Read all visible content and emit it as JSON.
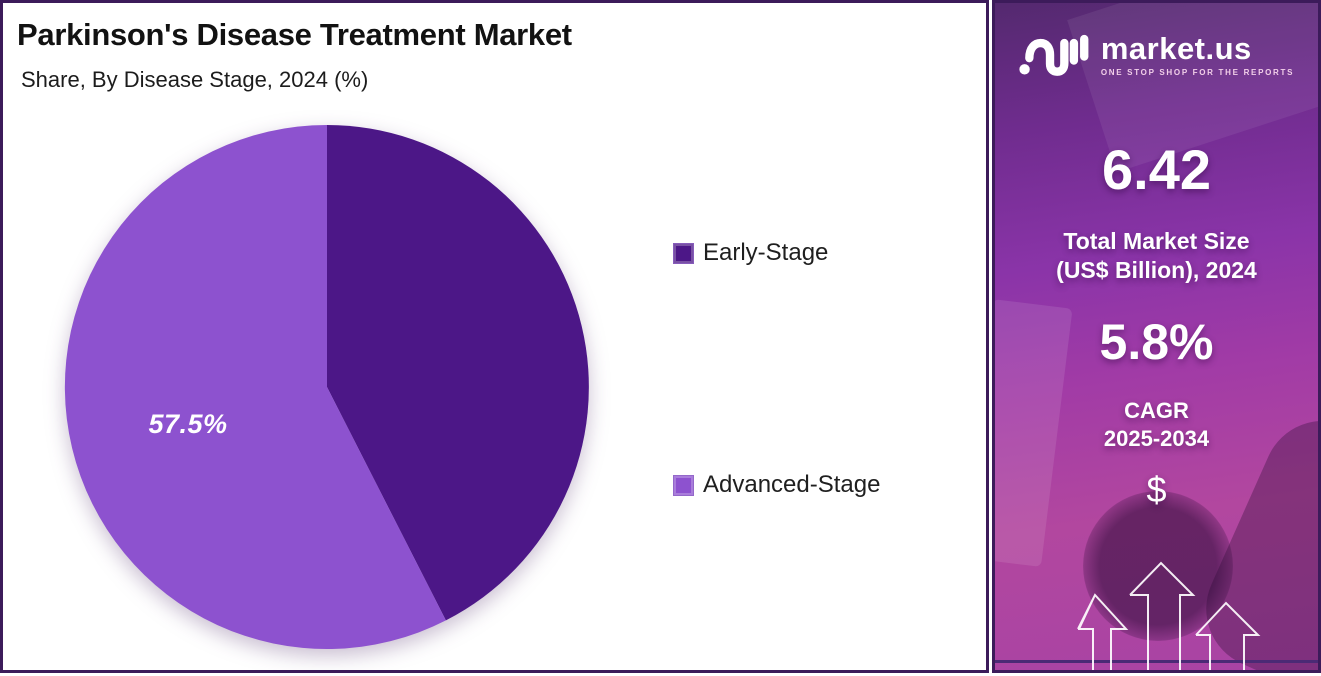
{
  "chart": {
    "title": "Parkinson's Disease Treatment Market",
    "subtitle": "Share, By Disease Stage, 2024 (%)",
    "legend": [
      {
        "label": "Early-Stage",
        "color": "#4c1787"
      },
      {
        "label": "Advanced-Stage",
        "color": "#8d52cf"
      }
    ]
  },
  "chart_data": {
    "type": "pie",
    "title": "Parkinson's Disease Treatment Market",
    "subtitle": "Share, By Disease Stage, 2024 (%)",
    "labels": [
      "Early-Stage",
      "Advanced-Stage"
    ],
    "values": [
      42.5,
      57.5
    ],
    "colors": [
      "#4c1787",
      "#8d52cf"
    ],
    "data_labels": [
      "",
      "57.5%"
    ],
    "start_angle": "12 o'clock, clockwise",
    "legend_position": "right"
  },
  "sidebar": {
    "brand": "market.us",
    "tagline": "ONE STOP SHOP FOR THE REPORTS",
    "stats": {
      "market_size_value": "6.42",
      "market_size_label_line1": "Total Market Size",
      "market_size_label_line2": "(US$ Billion), 2024",
      "cagr_value": "5.8%",
      "cagr_label_line1": "CAGR",
      "cagr_label_line2": "2025-2034"
    },
    "dollar_symbol": "$",
    "colors": {
      "gradient_top": "#54296f",
      "gradient_bottom": "#b2479f",
      "panel_border": "#3c1b5a"
    }
  }
}
